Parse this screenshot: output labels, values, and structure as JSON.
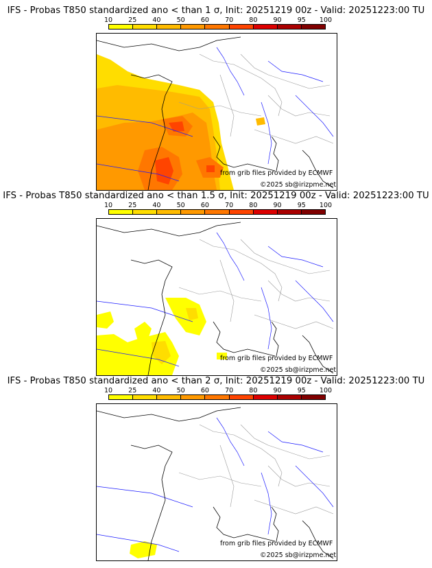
{
  "colorbar": {
    "ticks": [
      "10",
      "25",
      "40",
      "50",
      "60",
      "70",
      "80",
      "90",
      "95",
      "100"
    ],
    "colors": [
      "#ffff00",
      "#ffdd00",
      "#ffbb00",
      "#ff9900",
      "#ff7700",
      "#ff4400",
      "#dd0000",
      "#aa0000",
      "#800000"
    ]
  },
  "panels": [
    {
      "title": "IFS - Probas T850  standardized ano < than 1 σ, Init: 20251219 00z - Valid: 20251223:00 TU",
      "credit_source": "from grib files provided by ECMWF",
      "credit_copyright": "©2025 sb@irizpme.net"
    },
    {
      "title": "IFS - Probas T850  standardized ano < than 1.5 σ, Init: 20251219 00z - Valid: 20251223:00 TU",
      "credit_source": "from grib files provided by ECMWF",
      "credit_copyright": "©2025 sb@irizpme.net"
    },
    {
      "title": "IFS - Probas T850  standardized ano < than 2 σ, Init: 20251219 00z - Valid: 20251223:00 TU",
      "credit_source": "from grib files provided by ECMWF",
      "credit_copyright": "©2025 sb@irizpme.net"
    }
  ],
  "map": {
    "coastline_color": "#000000",
    "river_color": "#1a1aff",
    "border_color": "#999999"
  }
}
